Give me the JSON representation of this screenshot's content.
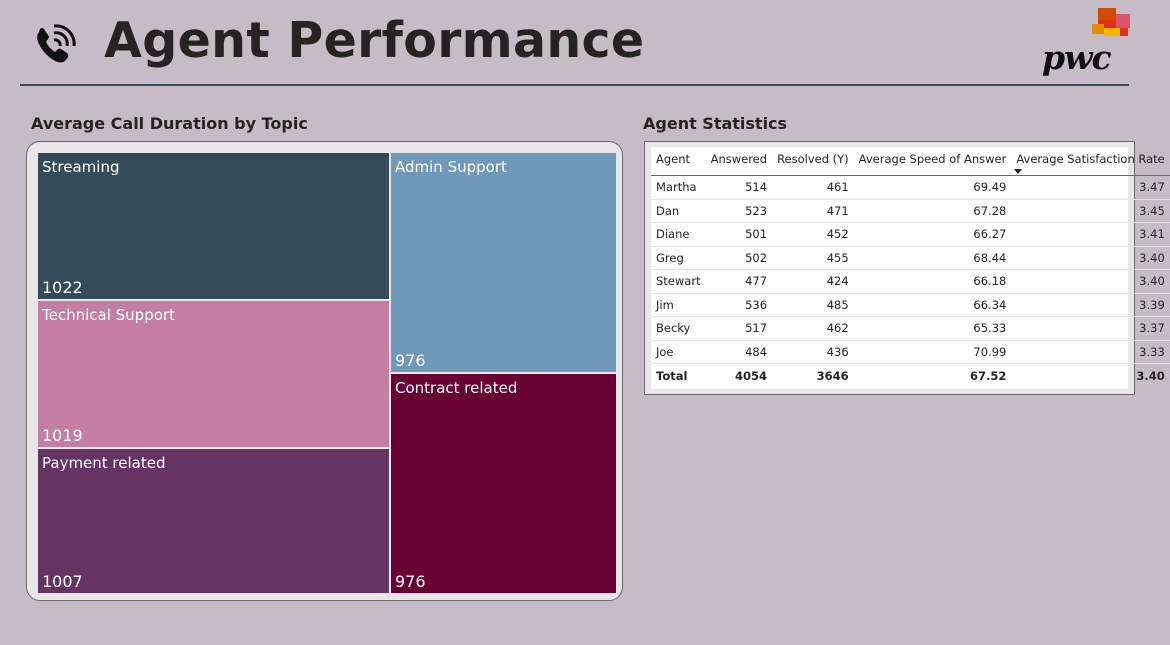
{
  "header": {
    "title": "Agent Performance",
    "logo_text": "pwc",
    "icons": {
      "phone": "phone-icon",
      "logo": "pwc-logo-icon"
    }
  },
  "treemap": {
    "title": "Average Call Duration by Topic"
  },
  "agent_table": {
    "title": "Agent Statistics",
    "columns": [
      "Agent",
      "Answered",
      "Resolved (Y)",
      "Average Speed of Answer",
      "Average Satisfaction Rate"
    ],
    "rows": [
      [
        "Martha",
        "514",
        "461",
        "69.49",
        "3.47"
      ],
      [
        "Dan",
        "523",
        "471",
        "67.28",
        "3.45"
      ],
      [
        "Diane",
        "501",
        "452",
        "66.27",
        "3.41"
      ],
      [
        "Greg",
        "502",
        "455",
        "68.44",
        "3.40"
      ],
      [
        "Stewart",
        "477",
        "424",
        "66.18",
        "3.40"
      ],
      [
        "Jim",
        "536",
        "485",
        "66.34",
        "3.39"
      ],
      [
        "Becky",
        "517",
        "462",
        "65.33",
        "3.37"
      ],
      [
        "Joe",
        "484",
        "436",
        "70.99",
        "3.33"
      ]
    ],
    "total": [
      "Total",
      "4054",
      "3646",
      "67.52",
      "3.40"
    ],
    "sorted_column": "Average Satisfaction Rate",
    "sort_direction": "descending"
  },
  "colors": {
    "background": "#c6bcc6",
    "accent_rule": "#c43a6e",
    "tile_colors": [
      "#364b5a",
      "#c47ea4",
      "#653463",
      "#7098b8",
      "#690033"
    ]
  },
  "chart_data": {
    "type": "treemap",
    "title": "Average Call Duration by Topic",
    "categories": [
      "Streaming",
      "Technical Support",
      "Payment related",
      "Admin Support",
      "Contract related"
    ],
    "values": [
      1022,
      1019,
      1007,
      976,
      976
    ],
    "colors": [
      "#364b5a",
      "#c47ea4",
      "#653463",
      "#7098b8",
      "#690033"
    ]
  }
}
